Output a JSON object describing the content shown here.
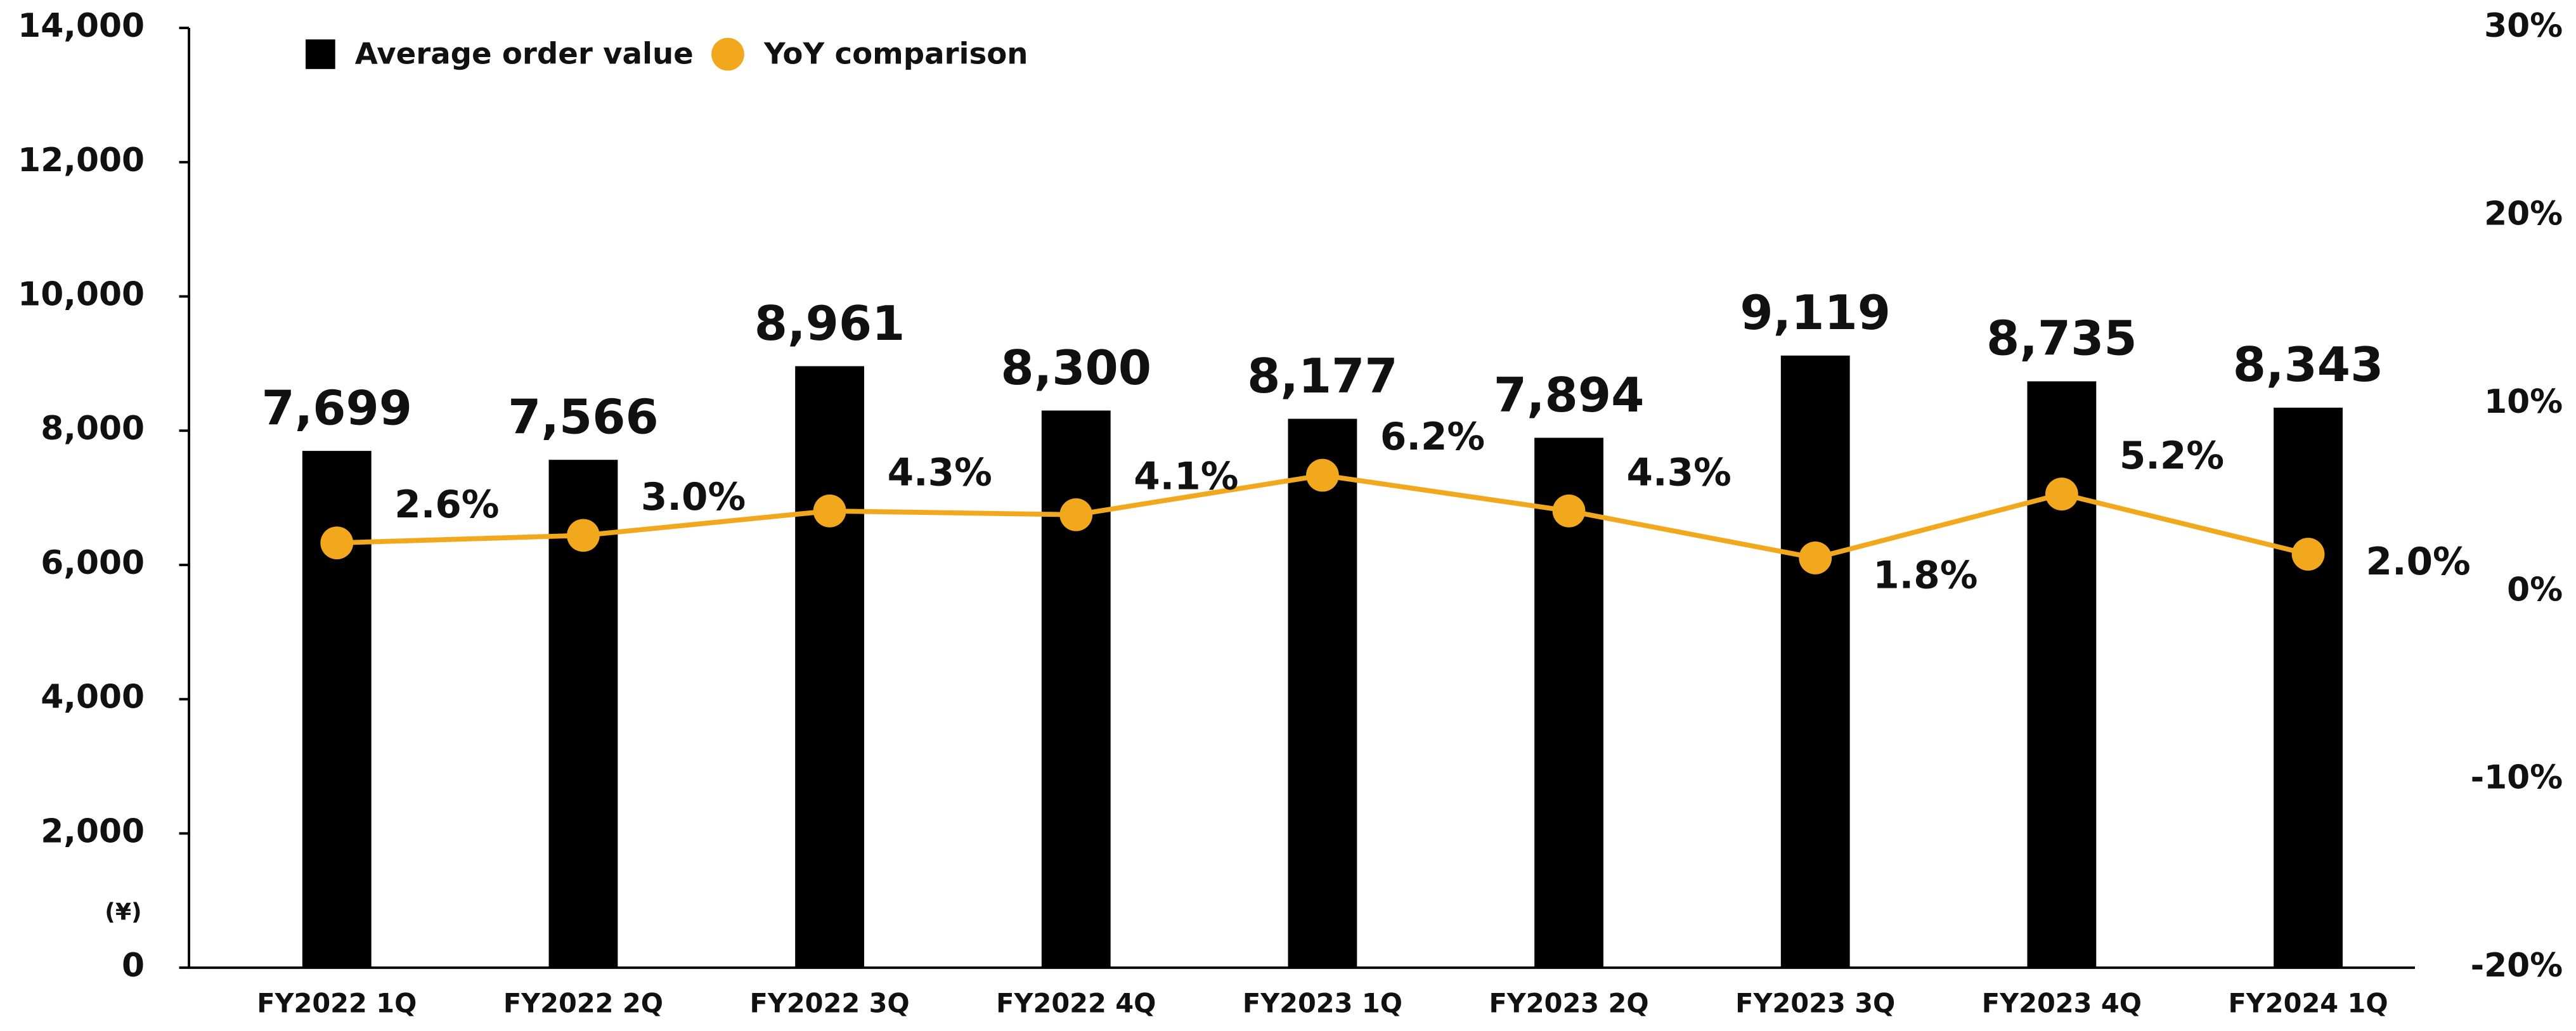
{
  "chart_data": {
    "type": "bar",
    "categories": [
      "FY2022 1Q",
      "FY2022 2Q",
      "FY2022 3Q",
      "FY2022 4Q",
      "FY2023 1Q",
      "FY2023 2Q",
      "FY2023 3Q",
      "FY2023 4Q",
      "FY2024 1Q"
    ],
    "y_unit": "(¥)",
    "series": [
      {
        "name": "Average order value",
        "color": "#000000",
        "type": "bar",
        "values": [
          7699,
          7566,
          8961,
          8300,
          8177,
          7894,
          9119,
          8735,
          8343
        ],
        "value_labels": [
          "7,699",
          "7,566",
          "8,961",
          "8,300",
          "8,177",
          "7,894",
          "9,119",
          "8,735",
          "8,343"
        ]
      },
      {
        "name": "YoY comparison",
        "color": "#f2a81d",
        "type": "line",
        "axis": "y2",
        "values": [
          2.6,
          3.0,
          4.3,
          4.1,
          6.2,
          4.3,
          1.8,
          5.2,
          2.0
        ],
        "value_labels": [
          "2.6%",
          "3.0%",
          "4.3%",
          "4.1%",
          "6.2%",
          "4.3%",
          "1.8%",
          "5.2%",
          "2.0%"
        ]
      }
    ],
    "ylim": [
      0,
      14000
    ],
    "yticks": [
      0,
      {
        "value": 2000,
        "label": "2,000"
      },
      {
        "value": 4000,
        "label": "4,000"
      },
      {
        "value": 6000,
        "label": "6,000"
      },
      {
        "value": 8000,
        "label": "8,000"
      },
      {
        "value": 10000,
        "label": "10,000"
      },
      {
        "value": 12000,
        "label": "12,000"
      },
      {
        "value": 14000,
        "label": "14,000"
      }
    ],
    "y2lim": [
      -20,
      30
    ],
    "y2ticks": [
      {
        "value": -20,
        "label": "-20%"
      },
      {
        "value": -10,
        "label": "-10%"
      },
      {
        "value": 0,
        "label": "0%"
      },
      {
        "value": 10,
        "label": "10%"
      },
      {
        "value": 20,
        "label": "20%"
      },
      {
        "value": 30,
        "label": "30%"
      }
    ],
    "legend": "upper left"
  }
}
